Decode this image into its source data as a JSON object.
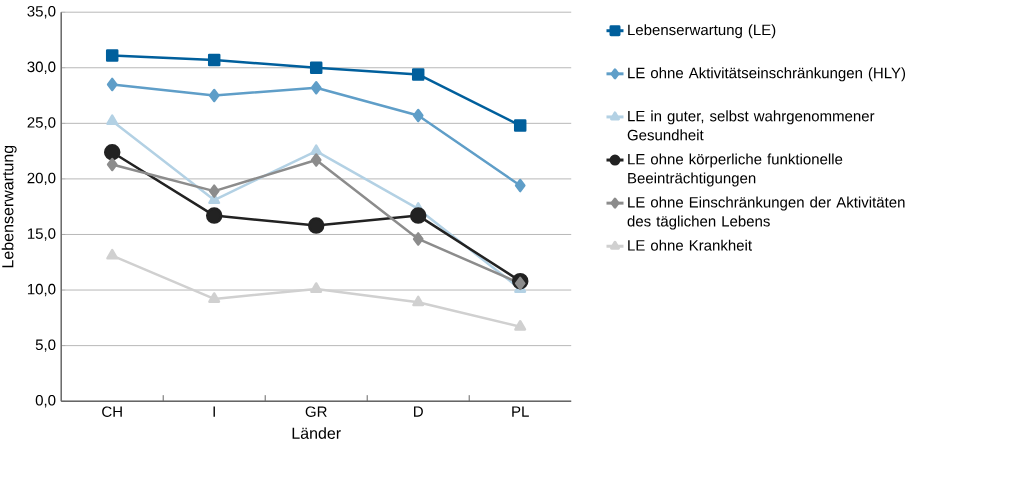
{
  "chart_data": {
    "type": "line",
    "xlabel": "Länder",
    "ylabel": "Lebenserwartung",
    "categories": [
      "CH",
      "I",
      "GR",
      "D",
      "PL"
    ],
    "ylim": [
      0,
      35
    ],
    "yticks": [
      {
        "value": 0,
        "label": "0,0"
      },
      {
        "value": 5,
        "label": "5,0"
      },
      {
        "value": 10,
        "label": "10,0"
      },
      {
        "value": 15,
        "label": "15,0"
      },
      {
        "value": 20,
        "label": "20,0"
      },
      {
        "value": 25,
        "label": "25,0"
      },
      {
        "value": 30,
        "label": "30,0"
      },
      {
        "value": 35,
        "label": "35,0"
      }
    ],
    "grid": "y",
    "legend": "right",
    "line_style": "solid",
    "series": [
      {
        "name": "Lebenserwartung (LE)",
        "color": "#005f9c",
        "marker": "square",
        "values": [
          31.1,
          30.7,
          30.0,
          29.4,
          24.8
        ]
      },
      {
        "name": "LE ohne Aktivitätseinschränkungen (HLY)",
        "color": "#5f9ec8",
        "marker": "diamond",
        "values": [
          28.5,
          27.5,
          28.2,
          25.7,
          19.4
        ]
      },
      {
        "name": "LE in guter, selbst wahrgenommener Gesundheit",
        "color": "#b3d1e4",
        "marker": "triangle",
        "values": [
          25.2,
          18.1,
          22.5,
          17.3,
          10.1
        ]
      },
      {
        "name": "LE ohne körperliche funktionelle Beeinträchtigungen",
        "color": "#222222",
        "marker": "circle",
        "values": [
          22.4,
          16.7,
          15.8,
          16.7,
          10.8
        ]
      },
      {
        "name": "LE ohne Einschränkungen der Aktivitäten des täglichen Lebens",
        "color": "#8c8c8c",
        "marker": "diamond",
        "values": [
          21.3,
          18.9,
          21.7,
          14.6,
          10.6
        ]
      },
      {
        "name": "LE ohne Krankheit",
        "color": "#d0d0d0",
        "marker": "triangle",
        "values": [
          13.1,
          9.2,
          10.1,
          8.9,
          6.7
        ]
      }
    ]
  }
}
